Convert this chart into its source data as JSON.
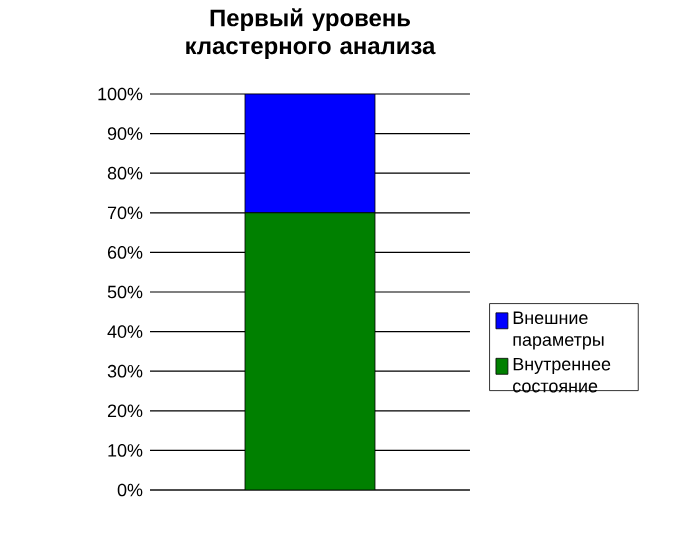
{
  "chart_data": {
    "type": "bar",
    "title": "Первый уровень кластерного анализа",
    "stacked": true,
    "categories": [
      null
    ],
    "series": [
      {
        "name": "Внутреннее состояние",
        "color": "#008000",
        "values": [
          70
        ]
      },
      {
        "name": "Внешние параметры",
        "color": "#0000ff",
        "values": [
          30
        ]
      }
    ],
    "ylim": [
      0,
      100
    ],
    "yticks": [
      {
        "value": 0,
        "label": "0%"
      },
      {
        "value": 10,
        "label": "10%"
      },
      {
        "value": 20,
        "label": "20%"
      },
      {
        "value": 30,
        "label": "30%"
      },
      {
        "value": 40,
        "label": "40%"
      },
      {
        "value": 50,
        "label": "50%"
      },
      {
        "value": 60,
        "label": "60%"
      },
      {
        "value": 70,
        "label": "70%"
      },
      {
        "value": 80,
        "label": "80%"
      },
      {
        "value": 90,
        "label": "90%"
      },
      {
        "value": 100,
        "label": "100%"
      }
    ],
    "grid": "y",
    "legend": "right"
  }
}
